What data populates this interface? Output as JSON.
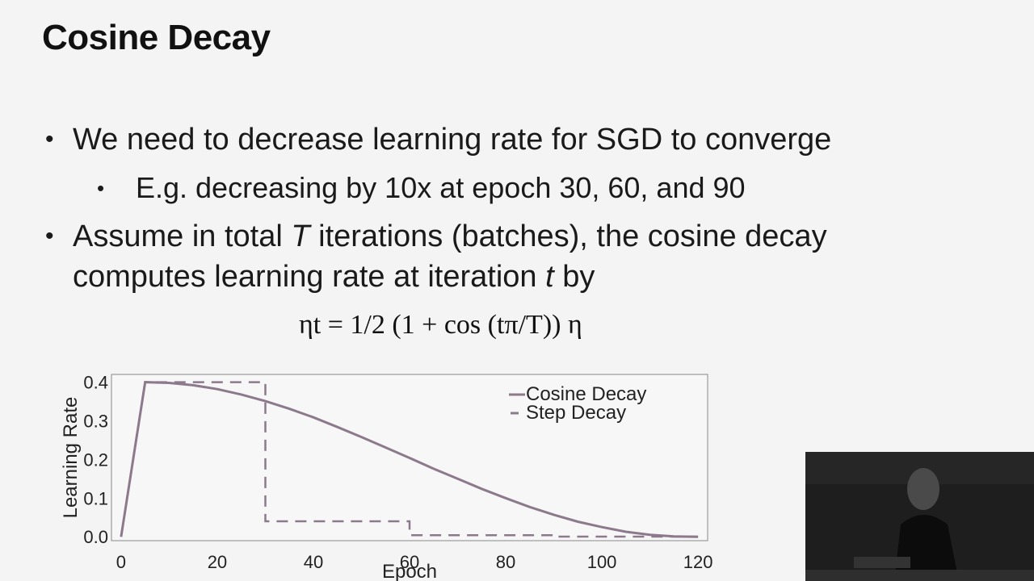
{
  "slide": {
    "title": "Cosine Decay",
    "bullets": [
      {
        "text": "We need to decrease learning rate for SGD to converge"
      },
      {
        "text": "E.g. decreasing by 10x at epoch 30, 60, and 90"
      },
      {
        "line1_pre": "Assume in total ",
        "line1_var": "T",
        "line1_post": " iterations (batches), the cosine decay",
        "line2_pre": "computes learning rate at iteration ",
        "line2_var": "t",
        "line2_post": " by"
      }
    ],
    "bullet_symbol": "•",
    "formula": "ηt = 1/2 (1 + cos (tπ/T)) η"
  },
  "chart_data": {
    "type": "line",
    "xlabel": "Epoch",
    "ylabel": "Learning Rate",
    "xlim": [
      -2,
      122
    ],
    "ylim": [
      -0.01,
      0.42
    ],
    "xticks": [
      "0",
      "20",
      "40",
      "60",
      "80",
      "100",
      "120"
    ],
    "yticks": [
      "0.0",
      "0.1",
      "0.2",
      "0.3",
      "0.4"
    ],
    "legend_position": "top-right",
    "series": [
      {
        "name": "Cosine Decay",
        "style": "solid",
        "color": "#8c7a8c",
        "x": [
          0,
          5,
          10,
          15,
          20,
          25,
          30,
          35,
          40,
          45,
          50,
          55,
          60,
          65,
          70,
          75,
          80,
          85,
          90,
          95,
          100,
          105,
          110,
          115,
          120
        ],
        "y": [
          0.0,
          0.4,
          0.398,
          0.392,
          0.382,
          0.368,
          0.351,
          0.331,
          0.309,
          0.284,
          0.258,
          0.231,
          0.204,
          0.176,
          0.15,
          0.124,
          0.1,
          0.077,
          0.057,
          0.039,
          0.025,
          0.013,
          0.005,
          0.001,
          0.0
        ]
      },
      {
        "name": "Step Decay",
        "style": "dashed",
        "color": "#8c7a8c",
        "x": [
          0,
          5,
          30,
          30,
          60,
          60,
          90,
          90,
          120
        ],
        "y": [
          0.0,
          0.4,
          0.4,
          0.04,
          0.04,
          0.004,
          0.004,
          0.0004,
          0.0004
        ]
      }
    ]
  }
}
